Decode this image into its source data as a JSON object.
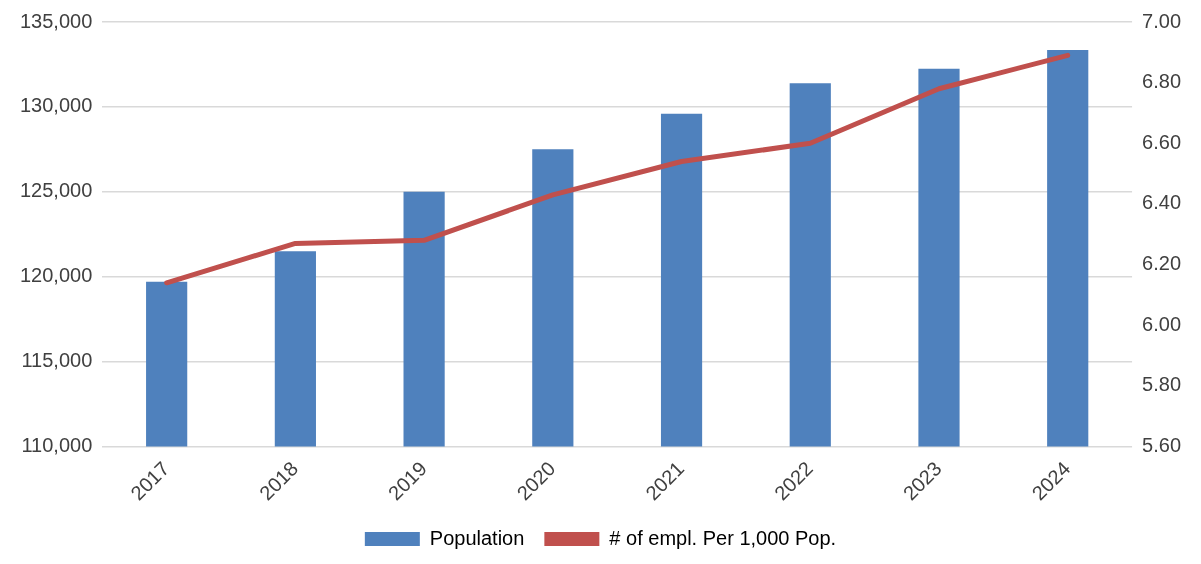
{
  "chart_data": {
    "type": "bar",
    "categories": [
      "2017",
      "2018",
      "2019",
      "2020",
      "2021",
      "2022",
      "2023",
      "2024"
    ],
    "series": [
      {
        "name": "Population",
        "color": "#4f81bd",
        "values": [
          119700,
          121500,
          125000,
          127500,
          129600,
          131400,
          132250,
          133350
        ]
      },
      {
        "name": "# of empl. Per 1,000 Pop.",
        "type": "line",
        "axis": "y2",
        "color": "#c0504d",
        "values": [
          6.14,
          6.27,
          6.28,
          6.43,
          6.54,
          6.6,
          6.78,
          6.89
        ]
      }
    ],
    "ylim": [
      110000,
      135000
    ],
    "yticks": [
      {
        "value": 110000,
        "label": "110,000"
      },
      {
        "value": 115000,
        "label": "115,000"
      },
      {
        "value": 120000,
        "label": "120,000"
      },
      {
        "value": 125000,
        "label": "125,000"
      },
      {
        "value": 130000,
        "label": "130,000"
      },
      {
        "value": 135000,
        "label": "135,000"
      }
    ],
    "y2lim": [
      5.6,
      7
    ],
    "y2ticks": [
      {
        "value": 5.6,
        "label": "5.60"
      },
      {
        "value": 5.8,
        "label": "5.80"
      },
      {
        "value": 6,
        "label": "6.00"
      },
      {
        "value": 6.2,
        "label": "6.20"
      },
      {
        "value": 6.4,
        "label": "6.40"
      },
      {
        "value": 6.6,
        "label": "6.60"
      },
      {
        "value": 6.8,
        "label": "6.80"
      },
      {
        "value": 7,
        "label": "7.00"
      }
    ],
    "grid": "y",
    "legend": "bottom",
    "marker": "none"
  }
}
